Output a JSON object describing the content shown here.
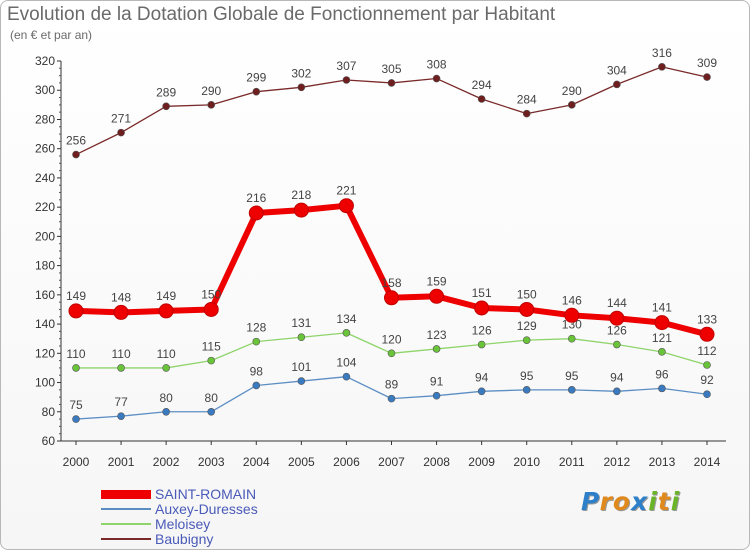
{
  "title": "Evolution de la Dotation Globale de Fonctionnement par Habitant",
  "subtitle": "(en € et par an)",
  "logo": {
    "text": "Proxiti",
    "letters": [
      {
        "ch": "P",
        "color": "#2c7fc8"
      },
      {
        "ch": "r",
        "color": "#e08a1e"
      },
      {
        "ch": "o",
        "color": "#e08a1e"
      },
      {
        "ch": "x",
        "color": "#2c7fc8"
      },
      {
        "ch": "i",
        "color": "#6ab42a"
      },
      {
        "ch": "t",
        "color": "#e08a1e"
      },
      {
        "ch": "i",
        "color": "#6ab42a"
      }
    ]
  },
  "chart_data": {
    "type": "line",
    "x": [
      "2000",
      "2001",
      "2002",
      "2003",
      "2004",
      "2005",
      "2006",
      "2007",
      "2008",
      "2009",
      "2010",
      "2011",
      "2012",
      "2013",
      "2014"
    ],
    "ylim": [
      60,
      320
    ],
    "yticks": [
      "60",
      "80",
      "100",
      "120",
      "140",
      "160",
      "180",
      "200",
      "220",
      "240",
      "260",
      "280",
      "300",
      "320"
    ],
    "grid": false,
    "legend_position": "bottom-left",
    "series": [
      {
        "name": "Baubigny",
        "color": "#7a2a2a",
        "marker": "#6e1e1e",
        "width": 1.3,
        "values": [
          256,
          271,
          289,
          290,
          299,
          302,
          307,
          305,
          308,
          294,
          284,
          290,
          304,
          316,
          309
        ]
      },
      {
        "name": "Meloisey",
        "color": "#8ed46a",
        "marker": "#6ac43a",
        "width": 1.3,
        "values": [
          110,
          110,
          110,
          115,
          128,
          131,
          134,
          120,
          123,
          126,
          129,
          130,
          126,
          121,
          112
        ]
      },
      {
        "name": "Auxey-Duresses",
        "color": "#5c8ec4",
        "marker": "#3a7ac0",
        "width": 1.3,
        "values": [
          75,
          77,
          80,
          80,
          98,
          101,
          104,
          89,
          91,
          94,
          95,
          95,
          94,
          96,
          92
        ]
      },
      {
        "name": "SAINT-ROMAIN",
        "color": "#ee0000",
        "marker": "#ee0000",
        "width": 6,
        "values": [
          149,
          148,
          149,
          150,
          216,
          218,
          221,
          158,
          159,
          151,
          150,
          146,
          144,
          141,
          133
        ]
      }
    ],
    "legend_order": [
      "SAINT-ROMAIN",
      "Auxey-Duresses",
      "Meloisey",
      "Baubigny"
    ]
  }
}
